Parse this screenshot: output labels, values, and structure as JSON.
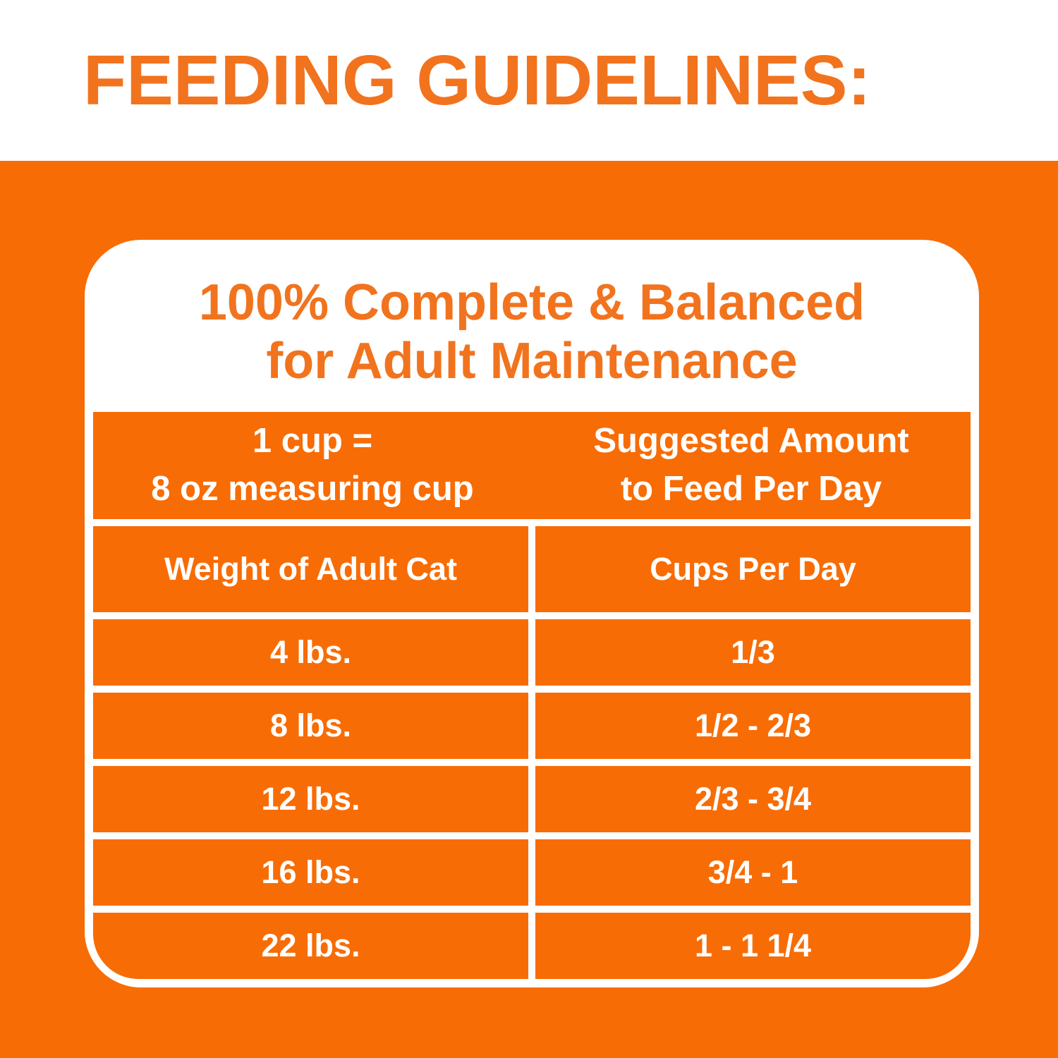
{
  "page_title": "FEEDING GUIDELINES:",
  "card": {
    "heading_line1": "100% Complete & Balanced",
    "heading_line2": "for Adult Maintenance"
  },
  "table": {
    "cup_note_line1": "1 cup =",
    "cup_note_line2": "8 oz measuring cup",
    "amount_note_line1": "Suggested Amount",
    "amount_note_line2": "to Feed Per Day",
    "col_weight": "Weight of Adult Cat",
    "col_cups": "Cups Per Day",
    "rows": [
      {
        "weight": "4 lbs.",
        "cups": "1/3"
      },
      {
        "weight": "8 lbs.",
        "cups": "1/2 - 2/3"
      },
      {
        "weight": "12 lbs.",
        "cups": "2/3 - 3/4"
      },
      {
        "weight": "16 lbs.",
        "cups": "3/4 - 1"
      },
      {
        "weight": "22 lbs.",
        "cups": "1 - 1 1/4"
      }
    ]
  },
  "colors": {
    "background_orange": "#F86C05",
    "heading_orange": "#F2731E",
    "table_text_white": "#FFFFFF"
  }
}
